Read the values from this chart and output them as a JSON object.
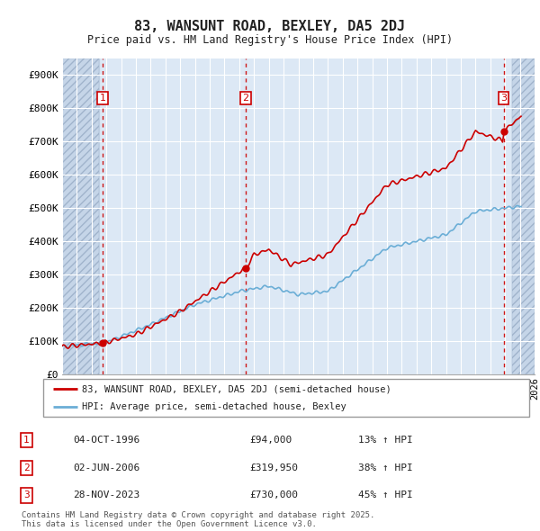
{
  "title": "83, WANSUNT ROAD, BEXLEY, DA5 2DJ",
  "subtitle": "Price paid vs. HM Land Registry's House Price Index (HPI)",
  "ylim": [
    0,
    950000
  ],
  "yticks": [
    0,
    100000,
    200000,
    300000,
    400000,
    500000,
    600000,
    700000,
    800000,
    900000
  ],
  "ytick_labels": [
    "£0",
    "£100K",
    "£200K",
    "£300K",
    "£400K",
    "£500K",
    "£600K",
    "£700K",
    "£800K",
    "£900K"
  ],
  "hpi_line_color": "#6baed6",
  "price_line_color": "#cc0000",
  "grid_color": "#c8d4e8",
  "purchases": [
    {
      "num": 1,
      "date_label": "04-OCT-1996",
      "x": 1996.75,
      "price": 94000,
      "hpi_pct": "13% ↑ HPI"
    },
    {
      "num": 2,
      "date_label": "02-JUN-2006",
      "x": 2006.42,
      "price": 319950,
      "hpi_pct": "38% ↑ HPI"
    },
    {
      "num": 3,
      "date_label": "28-NOV-2023",
      "x": 2023.9,
      "price": 730000,
      "hpi_pct": "45% ↑ HPI"
    }
  ],
  "legend_label1": "83, WANSUNT ROAD, BEXLEY, DA5 2DJ (semi-detached house)",
  "legend_label2": "HPI: Average price, semi-detached house, Bexley",
  "footer": "Contains HM Land Registry data © Crown copyright and database right 2025.\nThis data is licensed under the Open Government Licence v3.0.",
  "xmin": 1994,
  "xmax": 2026,
  "hatch_end": 1996.5,
  "hatch_start2": 2024.5
}
